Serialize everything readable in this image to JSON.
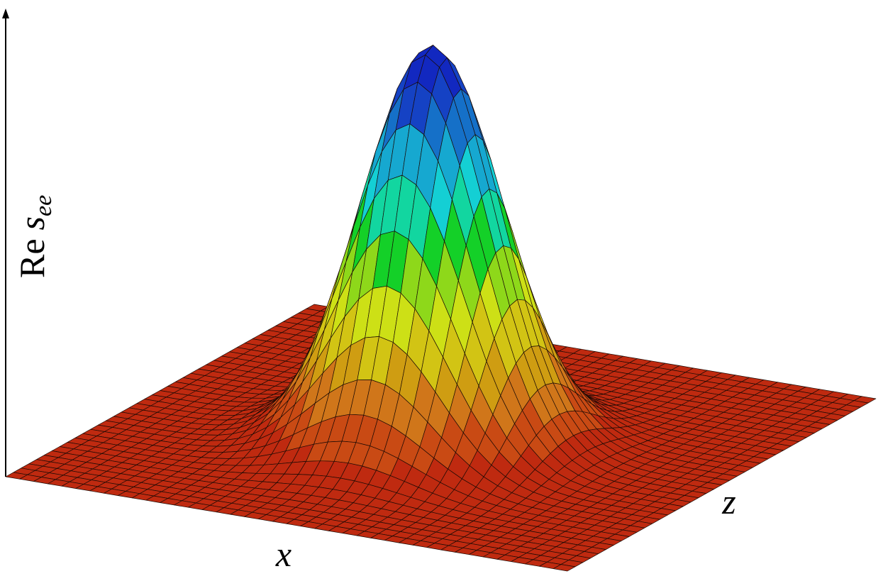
{
  "y_label": {
    "prefix": "Re",
    "symbol": "s",
    "subscript": "ee"
  },
  "x_label": "x",
  "z_label": "z"
}
